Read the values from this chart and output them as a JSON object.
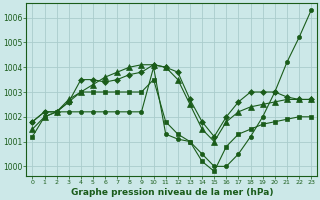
{
  "xlabel": "Graphe pression niveau de la mer (hPa)",
  "background_color": "#cce8e8",
  "grid_color": "#aacccc",
  "line_color": "#1a5c1a",
  "ylim": [
    999.6,
    1006.6
  ],
  "xlim": [
    -0.5,
    23.5
  ],
  "yticks": [
    1000,
    1001,
    1002,
    1003,
    1004,
    1005,
    1006
  ],
  "xticks": [
    0,
    1,
    2,
    3,
    4,
    5,
    6,
    7,
    8,
    9,
    10,
    11,
    12,
    13,
    14,
    15,
    16,
    17,
    18,
    19,
    20,
    21,
    22,
    23
  ],
  "series": [
    {
      "y": [
        1001.8,
        1002.2,
        1002.2,
        1002.6,
        1003.5,
        1003.5,
        1003.4,
        1003.5,
        1003.7,
        1003.8,
        1004.1,
        1004.0,
        1003.8,
        1002.7,
        1001.8,
        1001.2,
        1002.0,
        1002.6,
        1003.0,
        1003.0,
        1003.0,
        1002.8,
        1002.7,
        1002.7
      ],
      "marker": "D",
      "markersize": 3.0
    },
    {
      "y": [
        1001.5,
        1002.0,
        1002.2,
        1002.7,
        1003.0,
        1003.3,
        1003.6,
        1003.8,
        1004.0,
        1004.1,
        1004.1,
        1004.0,
        1003.5,
        1002.5,
        1001.5,
        1001.0,
        1001.8,
        1002.2,
        1002.4,
        1002.5,
        1002.6,
        1002.7,
        1002.7,
        1002.7
      ],
      "marker": "^",
      "markersize": 4.0
    },
    {
      "y": [
        1001.8,
        1002.2,
        1002.2,
        1002.2,
        1002.2,
        1002.2,
        1002.2,
        1002.2,
        1002.2,
        1002.2,
        1004.0,
        1001.3,
        1001.1,
        1001.0,
        1000.5,
        1000.0,
        1000.0,
        1000.5,
        1001.2,
        1002.0,
        1003.0,
        1004.2,
        1005.2,
        1006.3
      ],
      "marker": "o",
      "markersize": 3.0
    },
    {
      "y": [
        1001.2,
        1002.0,
        1002.2,
        1002.6,
        1003.0,
        1003.0,
        1003.0,
        1003.0,
        1003.0,
        1003.0,
        1003.5,
        1001.8,
        1001.3,
        1001.0,
        1000.2,
        999.8,
        1000.8,
        1001.3,
        1001.5,
        1001.7,
        1001.8,
        1001.9,
        1002.0,
        1002.0
      ],
      "marker": "s",
      "markersize": 2.5
    }
  ]
}
